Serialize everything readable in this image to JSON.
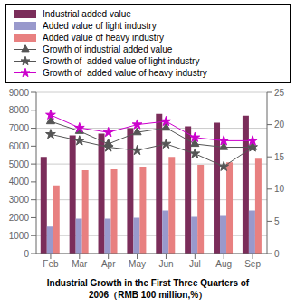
{
  "chart_data": {
    "type": "bar",
    "title": "Industrial Growth in the First Three Quarters of\n2006（RMB 100 million,%）",
    "categories": [
      "Feb",
      "Mar",
      "Apr",
      "May",
      "Jun",
      "Jul",
      "Aug",
      "Sep"
    ],
    "series": [
      {
        "name": "Industrial added value",
        "type": "bar",
        "color": "#7B2D5A",
        "values": [
          5400,
          6600,
          6700,
          7000,
          7800,
          7100,
          7300,
          7700
        ]
      },
      {
        "name": "Added value of light industry",
        "type": "bar",
        "color": "#9999CC",
        "values": [
          1500,
          1950,
          1950,
          2000,
          2400,
          2050,
          2150,
          2400
        ]
      },
      {
        "name": "Added value of heavy industry",
        "type": "bar",
        "color": "#E88080",
        "values": [
          3800,
          4650,
          4700,
          4850,
          5400,
          4950,
          5100,
          5300
        ]
      },
      {
        "name": "Growth of industrial added value",
        "type": "line",
        "axis": "y2",
        "marker": "triangle",
        "color": "#555555",
        "values": [
          20.5,
          19.0,
          17.0,
          18.8,
          19.5,
          17.0,
          16.5,
          16.5
        ]
      },
      {
        "name": "Growth of  added value of light industry",
        "type": "line",
        "axis": "y2",
        "marker": "star",
        "color": "#555555",
        "values": [
          18.5,
          17.5,
          16.5,
          16.0,
          17.0,
          15.5,
          13.5,
          16.5
        ]
      },
      {
        "name": "Growth of  added value of heavy industry",
        "type": "line",
        "axis": "y2",
        "marker": "star",
        "color": "#CC00CC",
        "values": [
          21.5,
          19.5,
          18.8,
          20.0,
          20.5,
          18.0,
          17.5,
          17.5
        ]
      }
    ],
    "ylim": [
      0,
      9000
    ],
    "yticks": [
      0,
      1000,
      2000,
      3000,
      4000,
      5000,
      6000,
      7000,
      8000,
      9000
    ],
    "y2lim": [
      0,
      25
    ],
    "y2ticks": [
      0,
      5,
      10,
      15,
      20,
      25
    ],
    "grid": true,
    "legend": "top"
  }
}
